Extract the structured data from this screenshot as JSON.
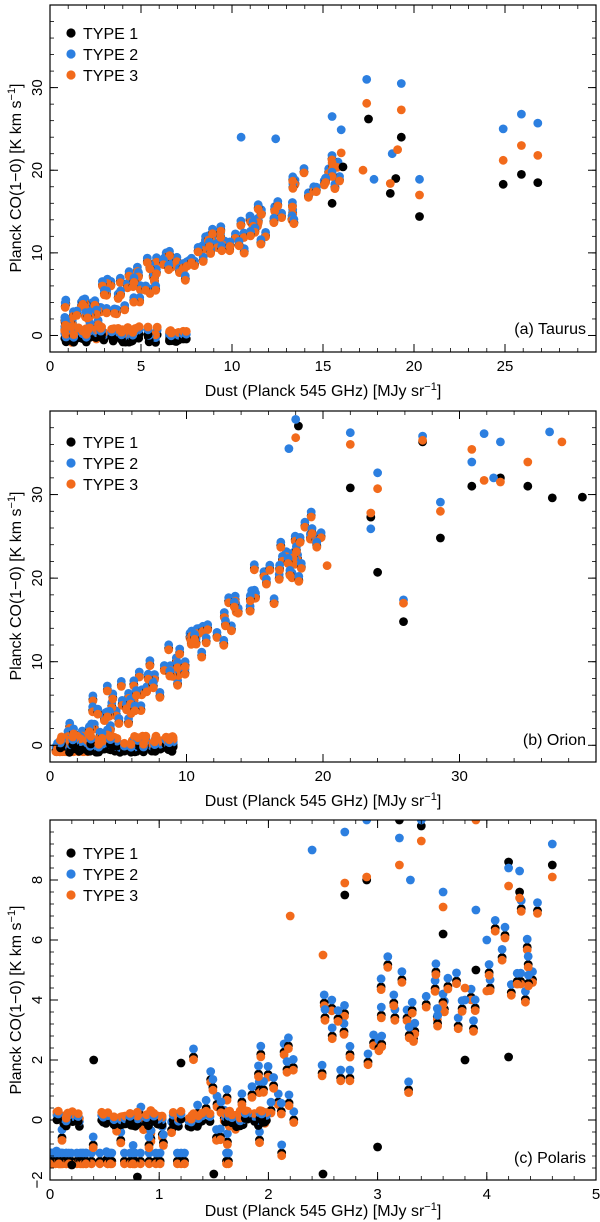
{
  "colors": {
    "type1": "#000000",
    "type2": "#2c7fe0",
    "type3": "#f26a1b"
  },
  "chart_data": [
    {
      "type": "scatter",
      "title": "",
      "annotation": "(a) Taurus",
      "xlabel": "Dust (Planck 545 GHz) [MJy sr",
      "xlabel_sup": "−1",
      "ylabel": "Planck CO(1−0) [K km s",
      "ylabel_sup": "−1",
      "xlim": [
        0,
        30
      ],
      "ylim": [
        -2,
        40
      ],
      "xticks": [
        0,
        5,
        10,
        15,
        20,
        25
      ],
      "yticks": [
        0,
        10,
        20,
        30
      ],
      "xtick_labels": [
        "0",
        "5",
        "10",
        "15",
        "20",
        "25"
      ],
      "ytick_labels": [
        "0",
        "10",
        "20",
        "30"
      ],
      "legend": [
        "TYPE 1",
        "TYPE 2",
        "TYPE 3"
      ],
      "trend": {
        "x0": 0.8,
        "x1": 16,
        "slope": 1.25,
        "intercept": -1,
        "spread": 4.5,
        "count": 140
      },
      "series": [
        {
          "name": "TYPE 1",
          "x": [
            17.5,
            19.0,
            19.3,
            20.3,
            24.9,
            25.9,
            26.8,
            16.1,
            15.5,
            18.7
          ],
          "y": [
            26.2,
            19.0,
            24.0,
            14.4,
            18.3,
            19.5,
            18.5,
            20.4,
            16.0,
            17.2
          ]
        },
        {
          "name": "TYPE 2",
          "x": [
            17.4,
            19.3,
            20.3,
            24.9,
            25.9,
            26.8,
            16.0,
            15.5,
            10.5,
            12.4,
            18.8,
            17.8
          ],
          "y": [
            31.0,
            30.5,
            18.9,
            25.0,
            26.8,
            25.7,
            24.9,
            26.5,
            24.0,
            23.8,
            22.0,
            18.9
          ]
        },
        {
          "name": "TYPE 3",
          "x": [
            17.4,
            19.3,
            20.3,
            24.9,
            25.9,
            26.8,
            16.0,
            15.5,
            19.1,
            18.7,
            17.2
          ],
          "y": [
            28.1,
            27.3,
            17.0,
            21.2,
            23.0,
            21.8,
            22.1,
            20.9,
            22.5,
            18.4,
            20.0
          ]
        }
      ]
    },
    {
      "type": "scatter",
      "title": "",
      "annotation": "(b) Orion",
      "xlabel": "Dust (Planck 545 GHz) [MJy sr",
      "xlabel_sup": "−1",
      "ylabel": "Planck CO(1−0) [K km s",
      "ylabel_sup": "−1",
      "xlim": [
        0,
        40
      ],
      "ylim": [
        -2,
        40
      ],
      "xticks": [
        0,
        10,
        20,
        30
      ],
      "yticks": [
        0,
        10,
        20,
        30
      ],
      "xtick_labels": [
        "0",
        "10",
        "20",
        "30"
      ],
      "ytick_labels": [
        "0",
        "10",
        "20",
        "30"
      ],
      "legend": [
        "TYPE 1",
        "TYPE 2",
        "TYPE 3"
      ],
      "trend": {
        "x0": 0.5,
        "x1": 20,
        "slope": 1.45,
        "intercept": -4,
        "spread": 5,
        "count": 150
      },
      "series": [
        {
          "name": "TYPE 1",
          "x": [
            39.0,
            36.8,
            35.0,
            33.0,
            27.3,
            24.0,
            25.9,
            28.6,
            30.9,
            22.0,
            23.5,
            18.2
          ],
          "y": [
            29.7,
            29.6,
            31.0,
            32.0,
            36.3,
            20.7,
            14.8,
            24.8,
            31.0,
            30.8,
            27.3,
            38.2
          ]
        },
        {
          "name": "TYPE 2",
          "x": [
            36.6,
            33.0,
            27.3,
            24.0,
            25.9,
            28.6,
            30.9,
            22.0,
            23.5,
            18.0,
            17.5,
            31.8,
            32.5
          ],
          "y": [
            37.5,
            36.3,
            37.0,
            32.6,
            17.4,
            29.1,
            33.9,
            37.4,
            25.9,
            39.0,
            35.5,
            37.3,
            32.0
          ]
        },
        {
          "name": "TYPE 3",
          "x": [
            37.5,
            35.0,
            33.0,
            27.3,
            24.0,
            25.9,
            28.6,
            30.9,
            22.0,
            23.5,
            18.0,
            31.8,
            20.3
          ],
          "y": [
            36.3,
            33.9,
            31.5,
            36.5,
            30.7,
            17.0,
            28.0,
            35.4,
            36.0,
            27.8,
            36.8,
            31.7,
            21.5
          ]
        }
      ]
    },
    {
      "type": "scatter",
      "title": "",
      "annotation": "(c) Polaris",
      "xlabel": "Dust (Planck 545 GHz) [MJy sr",
      "xlabel_sup": "−1",
      "ylabel": "Planck CO(1−0) [K km s",
      "ylabel_sup": "−1",
      "xlim": [
        0,
        5
      ],
      "ylim": [
        -2,
        10
      ],
      "xticks": [
        0,
        1,
        2,
        3,
        4,
        5
      ],
      "yticks": [
        -2,
        0,
        2,
        4,
        6,
        8
      ],
      "xtick_labels": [
        "0",
        "1",
        "2",
        "3",
        "4",
        "5"
      ],
      "ytick_labels": [
        "−2",
        "0",
        "2",
        "4",
        "6",
        "8"
      ],
      "legend": [
        "TYPE 1",
        "TYPE 2",
        "TYPE 3"
      ],
      "trend": {
        "x0": 0,
        "x1": 4.5,
        "slope": 1.9,
        "intercept": -3.3,
        "spread": 3,
        "count": 150
      },
      "series": [
        {
          "name": "TYPE 1",
          "x": [
            4.6,
            4.2,
            4.3,
            3.9,
            3.6,
            3.4,
            3.2,
            2.9,
            2.7,
            3.0,
            3.8,
            4.2,
            0.4,
            0.2,
            0.8,
            1.5,
            2.5,
            1.2
          ],
          "y": [
            8.5,
            8.6,
            7.6,
            5.0,
            6.2,
            9.8,
            10.0,
            8.0,
            7.5,
            -0.9,
            2.0,
            2.1,
            2.0,
            -1.5,
            -1.9,
            -1.8,
            -1.8,
            1.9
          ]
        },
        {
          "name": "TYPE 2",
          "x": [
            4.6,
            4.2,
            4.3,
            3.9,
            3.6,
            3.4,
            3.2,
            2.9,
            2.7,
            3.8,
            4.0,
            3.3,
            2.4
          ],
          "y": [
            9.2,
            8.4,
            8.3,
            7.0,
            7.6,
            10.0,
            9.4,
            10.0,
            9.6,
            4.0,
            6.0,
            8.0,
            9.0
          ]
        },
        {
          "name": "TYPE 3",
          "x": [
            4.6,
            4.2,
            4.3,
            3.9,
            3.6,
            3.4,
            3.2,
            2.9,
            2.7,
            3.8,
            4.0,
            2.5,
            2.2
          ],
          "y": [
            8.1,
            7.8,
            7.4,
            10.0,
            7.1,
            9.3,
            8.5,
            8.1,
            7.9,
            4.4,
            4.3,
            5.5,
            6.8
          ]
        }
      ]
    }
  ]
}
